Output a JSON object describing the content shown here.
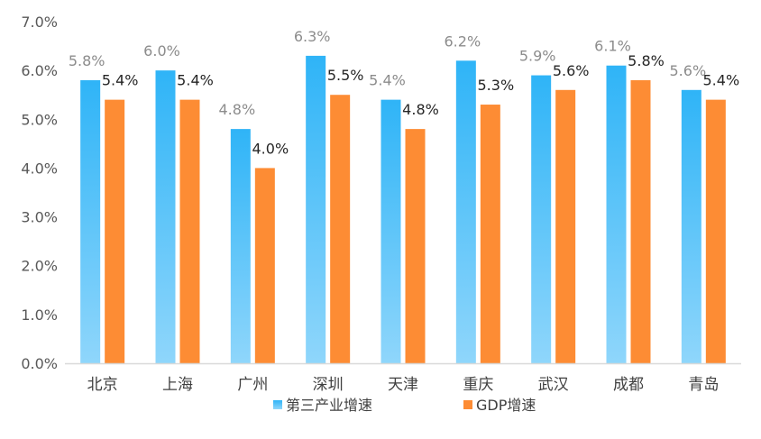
{
  "chart_data": {
    "type": "bar",
    "categories": [
      "北京",
      "上海",
      "广州",
      "深圳",
      "天津",
      "重庆",
      "武汉",
      "成都",
      "青岛"
    ],
    "series": [
      {
        "name": "第三产业增速",
        "values": [
          5.8,
          6.0,
          4.8,
          6.3,
          5.4,
          6.2,
          5.9,
          6.1,
          5.6
        ],
        "labels": [
          "5.8%",
          "6.0%",
          "4.8%",
          "6.3%",
          "5.4%",
          "6.2%",
          "5.9%",
          "6.1%",
          "5.6%"
        ]
      },
      {
        "name": "GDP增速",
        "values": [
          5.4,
          5.4,
          4.0,
          5.5,
          4.8,
          5.3,
          5.6,
          5.8,
          5.4
        ],
        "labels": [
          "5.4%",
          "5.4%",
          "4.0%",
          "5.5%",
          "4.8%",
          "5.3%",
          "5.6%",
          "5.8%",
          "5.4%"
        ]
      }
    ],
    "y_ticks": [
      "0.0%",
      "1.0%",
      "2.0%",
      "3.0%",
      "4.0%",
      "5.0%",
      "6.0%",
      "7.0%"
    ],
    "ylim": [
      0,
      7
    ],
    "grid": false,
    "legend_position": "bottom-center",
    "colors": {
      "series1_top": "#2fb4f7",
      "series1_bottom": "#8fd6fb",
      "series2": "#fd8c34",
      "axis": "#d9d9d9"
    }
  }
}
